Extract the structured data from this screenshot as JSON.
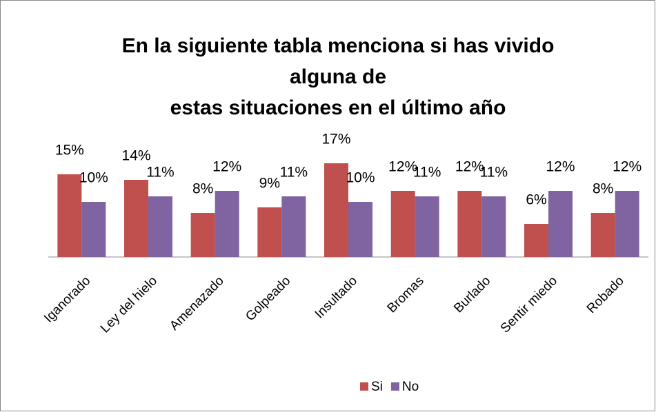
{
  "chart_data": {
    "type": "bar",
    "title": [
      "En la siguiente tabla menciona si has vivido",
      "alguna de",
      "estas situaciones en el último año"
    ],
    "categories": [
      "Iganorado",
      "Ley del hielo",
      "Amenazado",
      "Golpeado",
      "Insultado",
      "Bromas",
      "Burlado",
      "Sentir miedo",
      "Robado"
    ],
    "series": [
      {
        "name": "Si",
        "color": "#c0504d",
        "values": [
          15,
          14,
          8,
          9,
          17,
          12,
          12,
          6,
          8
        ],
        "value_labels": [
          "15%",
          "14%",
          "8%",
          "9%",
          "17%",
          "12%",
          "12%",
          "6%",
          "8%"
        ]
      },
      {
        "name": "No",
        "color": "#8064a2",
        "values": [
          10,
          11,
          12,
          11,
          10,
          11,
          11,
          12,
          12
        ],
        "value_labels": [
          "10%",
          "11%",
          "12%",
          "11%",
          "10%",
          "11%",
          "11%",
          "12%",
          "12%"
        ]
      }
    ],
    "legend": "bottom"
  }
}
